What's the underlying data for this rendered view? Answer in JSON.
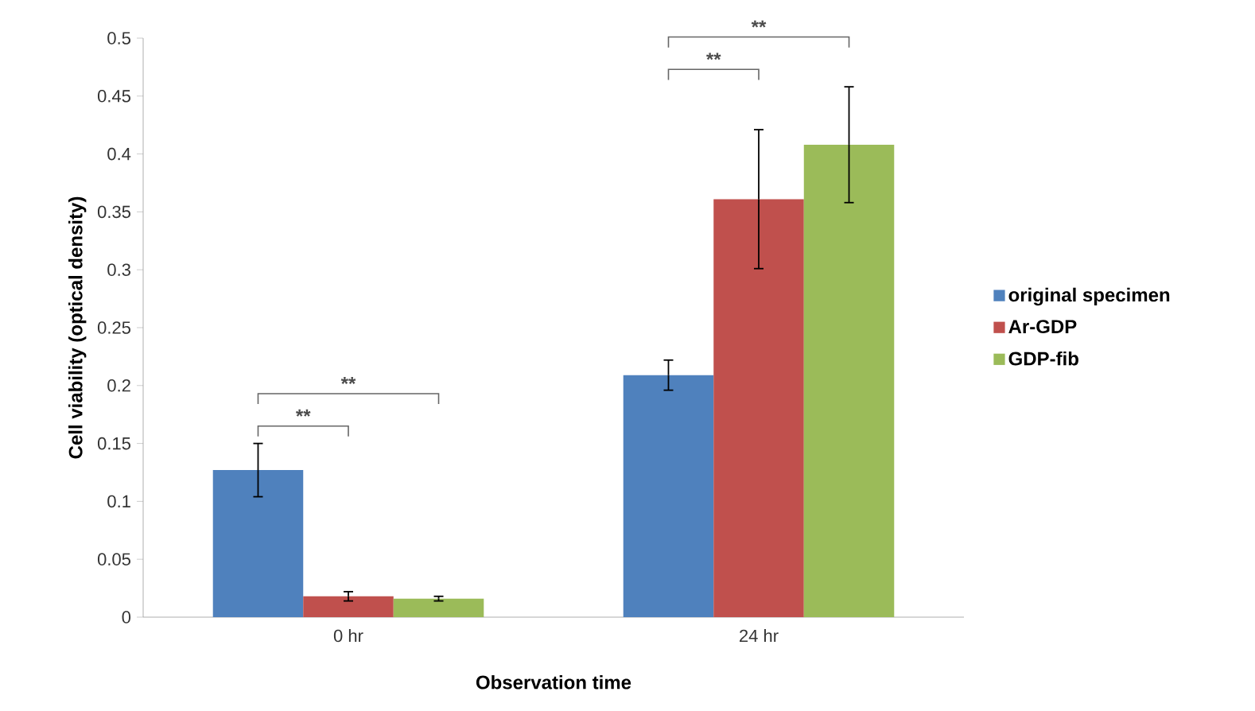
{
  "chart_data": {
    "type": "bar",
    "xlabel": "Observation time",
    "ylabel": "Cell viability (optical density)",
    "categories": [
      "0 hr",
      "24 hr"
    ],
    "series": [
      {
        "name": "original specimen",
        "color": "#4f81bd",
        "values": [
          0.127,
          0.209
        ],
        "errors": [
          0.023,
          0.013
        ]
      },
      {
        "name": "Ar-GDP",
        "color": "#c0504d",
        "values": [
          0.018,
          0.361
        ],
        "errors": [
          0.004,
          0.06
        ]
      },
      {
        "name": "GDP-fib",
        "color": "#9bbb59",
        "values": [
          0.016,
          0.408
        ],
        "errors": [
          0.002,
          0.05
        ]
      }
    ],
    "ylim": [
      0,
      0.5
    ],
    "yticks": [
      0,
      0.05,
      0.1,
      0.15,
      0.2,
      0.25,
      0.3,
      0.35,
      0.4,
      0.45,
      0.5
    ],
    "grid": false,
    "legend": "right",
    "annotations": [
      "**",
      "**",
      "**",
      "**"
    ]
  }
}
